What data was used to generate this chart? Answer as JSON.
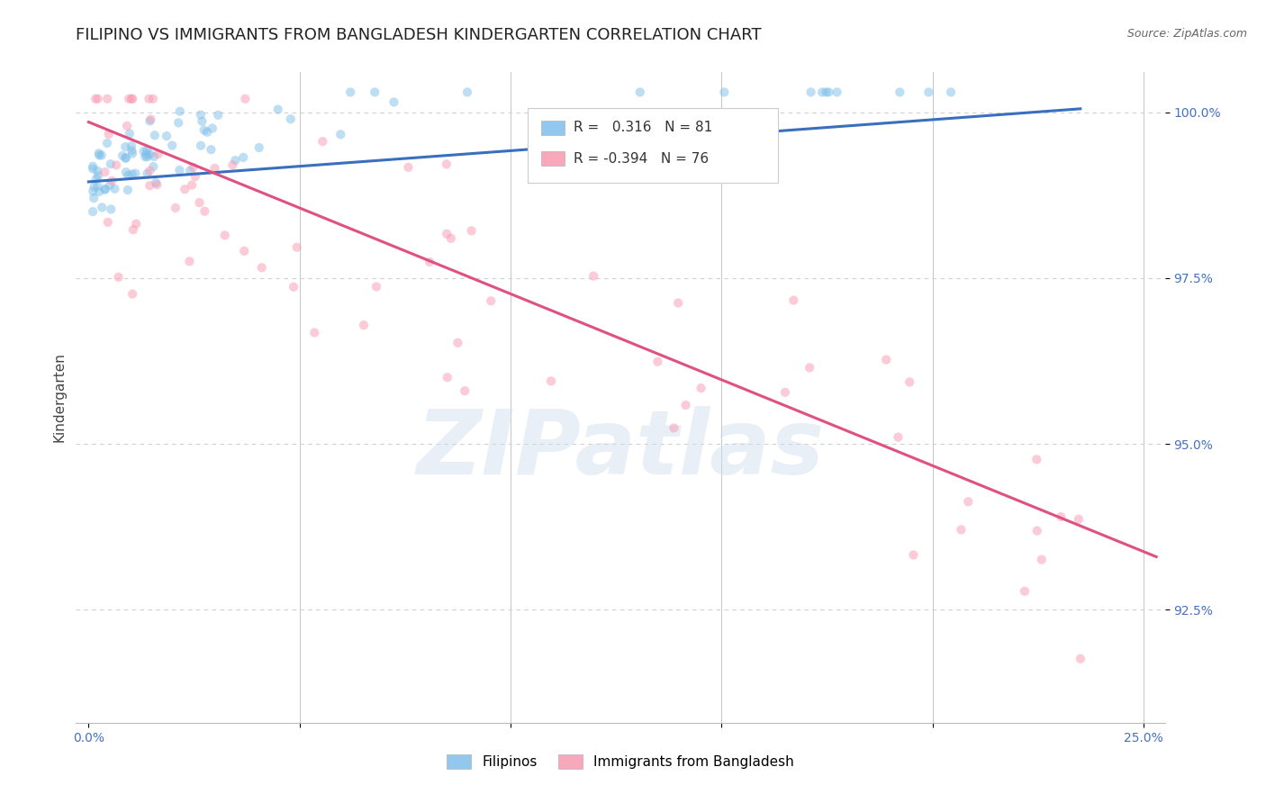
{
  "title": "FILIPINO VS IMMIGRANTS FROM BANGLADESH KINDERGARTEN CORRELATION CHART",
  "source": "Source: ZipAtlas.com",
  "ylabel": "Kindergarten",
  "xlim": [
    -0.003,
    0.255
  ],
  "ylim": [
    0.908,
    1.006
  ],
  "xticks": [
    0.0,
    0.05,
    0.1,
    0.15,
    0.2,
    0.25
  ],
  "xticklabels": [
    "0.0%",
    "",
    "",
    "",
    "",
    "25.0%"
  ],
  "yticks": [
    0.925,
    0.95,
    0.975,
    1.0
  ],
  "yticklabels": [
    "92.5%",
    "95.0%",
    "97.5%",
    "100.0%"
  ],
  "blue_R": 0.316,
  "blue_N": 81,
  "pink_R": -0.394,
  "pink_N": 76,
  "blue_color": "#7fbfea",
  "pink_color": "#f999b0",
  "blue_line_color": "#3a6fbf",
  "pink_line_color": "#e05080",
  "blue_label": "Filipinos",
  "pink_label": "Immigrants from Bangladesh",
  "blue_trend_x0": 0.0,
  "blue_trend_y0": 0.9895,
  "blue_trend_x1": 0.235,
  "blue_trend_y1": 1.0005,
  "pink_trend_x0": 0.0,
  "pink_trend_y0": 0.9985,
  "pink_trend_x1": 0.253,
  "pink_trend_y1": 0.933,
  "watermark_text": "ZIPatlas",
  "background_color": "#ffffff",
  "grid_color": "#d0d0d0",
  "tick_color": "#4472c4",
  "title_fontsize": 13,
  "axis_label_fontsize": 11,
  "tick_fontsize": 10,
  "legend_fontsize": 11,
  "marker_size": 55,
  "marker_alpha": 0.5
}
